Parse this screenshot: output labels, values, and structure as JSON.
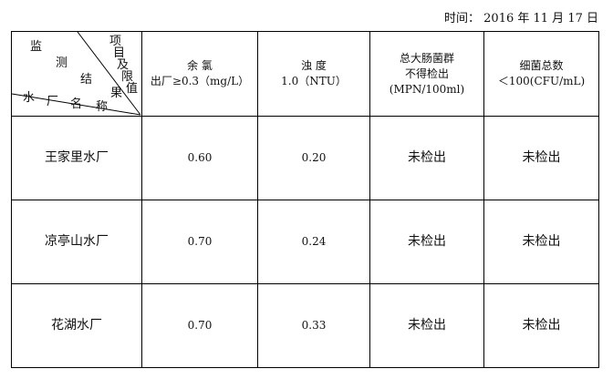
{
  "date_label": "时间： 2016 年 11 月 17 日",
  "header": {
    "corner_chars": {
      "a": "监",
      "b": "测",
      "c": "结",
      "d": "果",
      "e": "项",
      "f": "目",
      "g": "及",
      "h": "限",
      "i": "值",
      "j": "水",
      "k": "厂",
      "l": "名",
      "m": "称"
    },
    "columns": [
      {
        "line1": "余 氯",
        "line2": "出厂≥0.3（mg/L）",
        "line3": ""
      },
      {
        "line1": "浊 度",
        "line2": "1.0（NTU）",
        "line3": ""
      },
      {
        "line1": "总大肠菌群",
        "line2": "不得检出",
        "line3": "(MPN/100ml)"
      },
      {
        "line1": "细菌总数",
        "line2": "＜100(CFU/mL)",
        "line3": ""
      }
    ]
  },
  "rows": [
    {
      "plant": "王家里水厂",
      "chlorine": "0.60",
      "turbidity": "0.20",
      "coliform": "未检出",
      "bacteria": "未检出"
    },
    {
      "plant": "凉亭山水厂",
      "chlorine": "0.70",
      "turbidity": "0.24",
      "coliform": "未检出",
      "bacteria": "未检出"
    },
    {
      "plant": "花湖水厂",
      "chlorine": "0.70",
      "turbidity": "0.33",
      "coliform": "未检出",
      "bacteria": "未检出"
    }
  ]
}
